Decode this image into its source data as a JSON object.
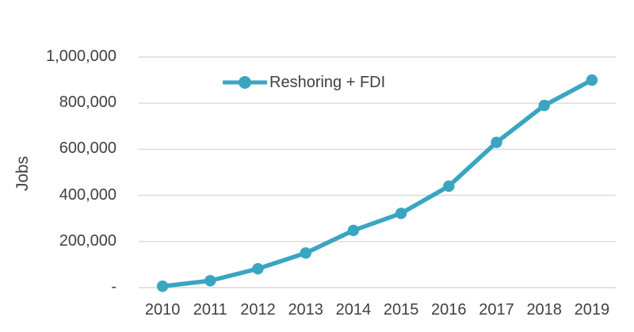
{
  "chart_data": {
    "type": "line",
    "title": "",
    "xlabel": "",
    "ylabel": "Jobs",
    "categories": [
      "2010",
      "2011",
      "2012",
      "2013",
      "2014",
      "2015",
      "2016",
      "2017",
      "2018",
      "2019"
    ],
    "series": [
      {
        "name": "Reshoring + FDI",
        "color": "#3AA5C1",
        "marker": "circle",
        "values": [
          6000,
          30000,
          82000,
          150000,
          248000,
          322000,
          440000,
          630000,
          790000,
          900000
        ]
      }
    ],
    "ylim": [
      0,
      1000000
    ],
    "ytick_interval": 200000,
    "ytick_labels": [
      "-",
      "200,000",
      "400,000",
      "600,000",
      "800,000",
      "1,000,000"
    ],
    "grid": "horizontal",
    "legend_position": "top-center-inside",
    "colors": {
      "gridline": "#D9D9D9",
      "text": "#404040",
      "background": "#FFFFFF"
    }
  }
}
